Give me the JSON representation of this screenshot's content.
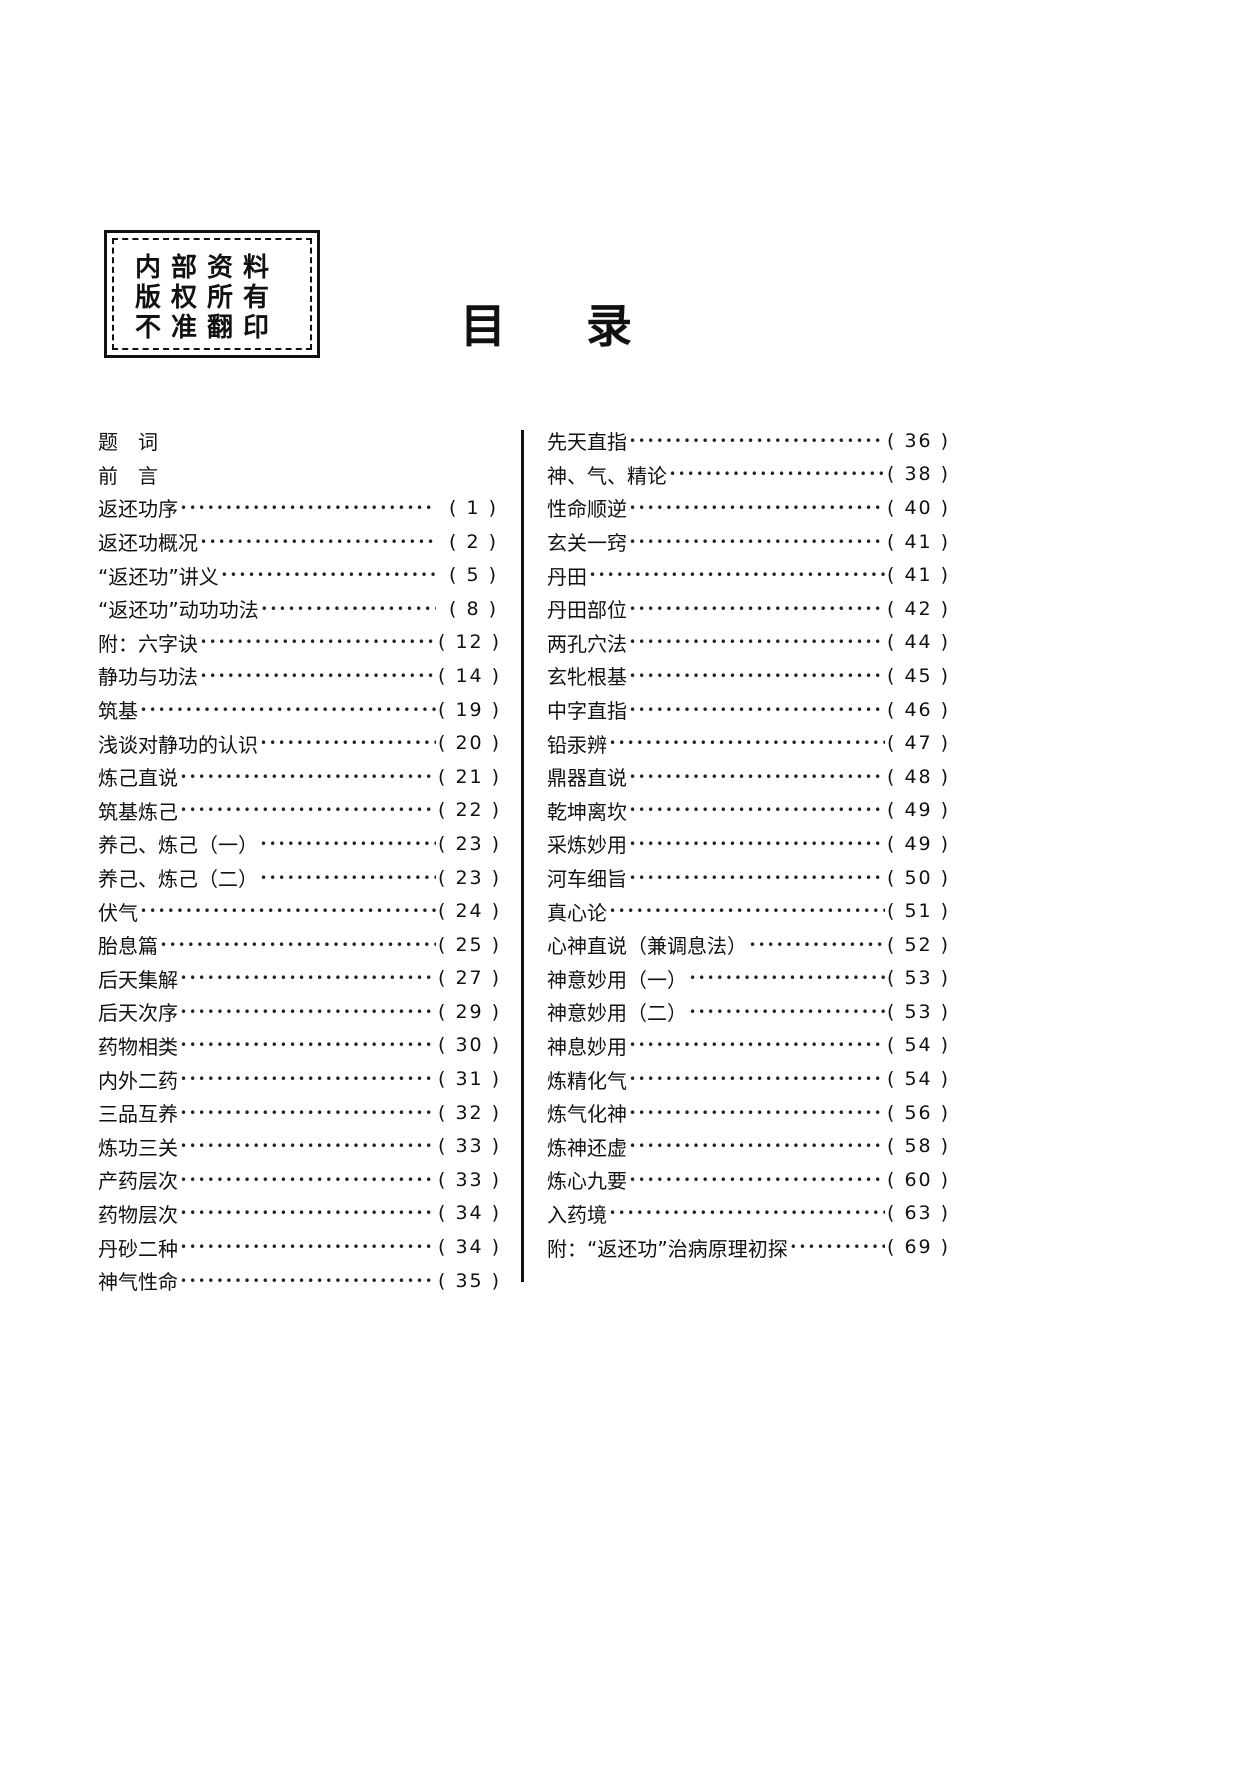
{
  "stamp": {
    "lines": [
      "内部资料",
      "版权所有",
      "不准翻印"
    ]
  },
  "title": {
    "left": "目",
    "right": "录"
  },
  "toc_left": [
    {
      "title": "题　词",
      "page": ""
    },
    {
      "title": "前　言",
      "page": ""
    },
    {
      "title": "返还功序",
      "page": "1"
    },
    {
      "title": "返还功概况",
      "page": "2"
    },
    {
      "title": "“返还功”讲义",
      "page": "5"
    },
    {
      "title": "“返还功”动功功法",
      "page": "8"
    },
    {
      "title": "附：六字诀",
      "page": "12"
    },
    {
      "title": "静功与功法",
      "page": "14"
    },
    {
      "title": "筑基",
      "page": "19"
    },
    {
      "title": "浅谈对静功的认识",
      "page": "20"
    },
    {
      "title": "炼己直说",
      "page": "21"
    },
    {
      "title": "筑基炼己",
      "page": "22"
    },
    {
      "title": "养己、炼己（一）",
      "page": "23"
    },
    {
      "title": "养己、炼己（二）",
      "page": "23"
    },
    {
      "title": "伏气",
      "page": "24"
    },
    {
      "title": "胎息篇",
      "page": "25"
    },
    {
      "title": "后天集解",
      "page": "27"
    },
    {
      "title": "后天次序",
      "page": "29"
    },
    {
      "title": "药物相类",
      "page": "30"
    },
    {
      "title": "内外二药",
      "page": "31"
    },
    {
      "title": "三品互养",
      "page": "32"
    },
    {
      "title": "炼功三关",
      "page": "33"
    },
    {
      "title": "产药层次",
      "page": "33"
    },
    {
      "title": "药物层次",
      "page": "34"
    },
    {
      "title": "丹砂二种",
      "page": "34"
    },
    {
      "title": "神气性命",
      "page": "35"
    }
  ],
  "toc_right": [
    {
      "title": "先天直指",
      "page": "36"
    },
    {
      "title": "神、气、精论",
      "page": "38"
    },
    {
      "title": "性命顺逆",
      "page": "40"
    },
    {
      "title": "玄关一窍",
      "page": "41"
    },
    {
      "title": "丹田",
      "page": "41"
    },
    {
      "title": "丹田部位",
      "page": "42"
    },
    {
      "title": "两孔穴法",
      "page": "44"
    },
    {
      "title": "玄牝根基",
      "page": "45"
    },
    {
      "title": "中字直指",
      "page": "46"
    },
    {
      "title": "铅汞辨",
      "page": "47"
    },
    {
      "title": "鼎器直说",
      "page": "48"
    },
    {
      "title": "乾坤离坎",
      "page": "49"
    },
    {
      "title": "采炼妙用",
      "page": "49"
    },
    {
      "title": "河车细旨",
      "page": "50"
    },
    {
      "title": "真心论",
      "page": "51"
    },
    {
      "title": "心神直说（兼调息法）",
      "page": "52"
    },
    {
      "title": "神意妙用（一）",
      "page": "53"
    },
    {
      "title": "神意妙用（二）",
      "page": "53"
    },
    {
      "title": "神息妙用",
      "page": "54"
    },
    {
      "title": "炼精化气",
      "page": "54"
    },
    {
      "title": "炼气化神",
      "page": "56"
    },
    {
      "title": "炼神还虚",
      "page": "58"
    },
    {
      "title": "炼心九要",
      "page": "60"
    },
    {
      "title": "入药境",
      "page": "63"
    },
    {
      "title": "附：“返还功”治病原理初探",
      "page": "69"
    }
  ]
}
